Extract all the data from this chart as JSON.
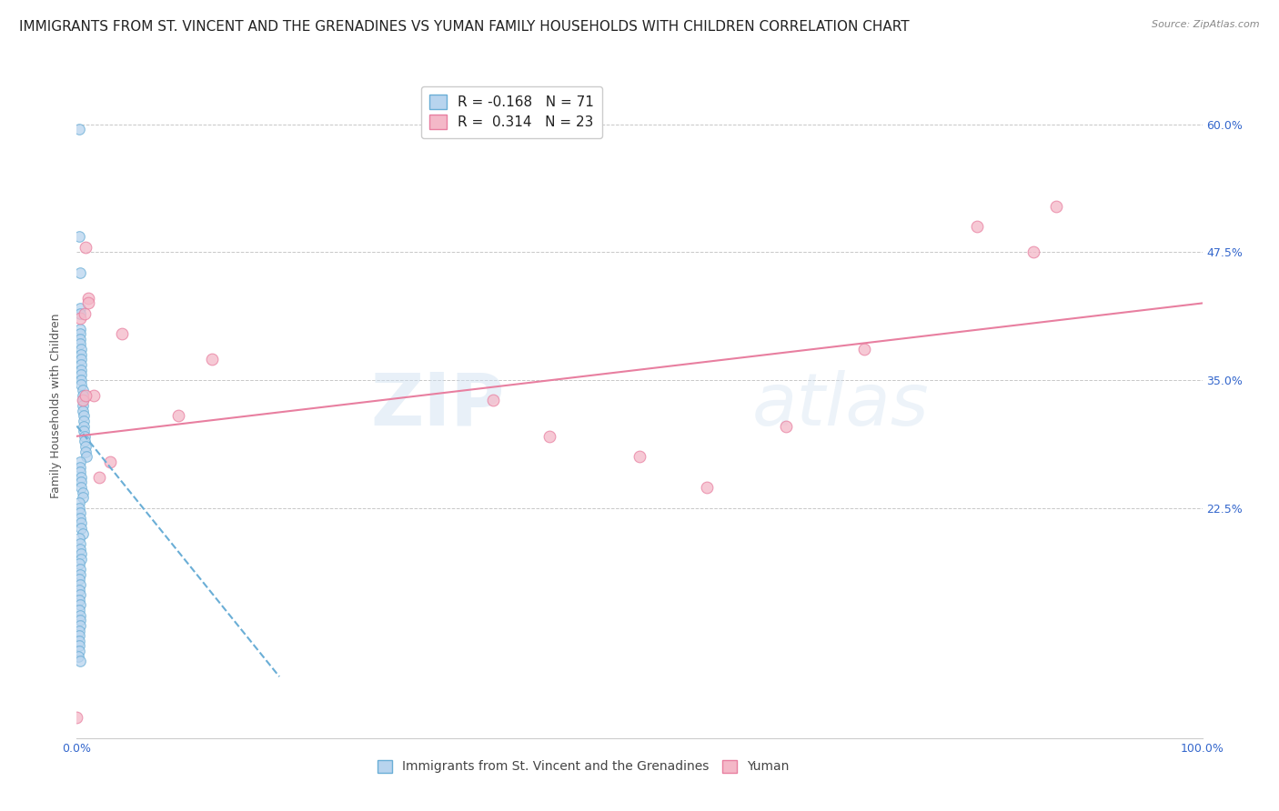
{
  "title": "IMMIGRANTS FROM ST. VINCENT AND THE GRENADINES VS YUMAN FAMILY HOUSEHOLDS WITH CHILDREN CORRELATION CHART",
  "source": "Source: ZipAtlas.com",
  "ylabel": "Family Households with Children",
  "watermark_zip": "ZIP",
  "watermark_atlas": "atlas",
  "legend_blue_r": "-0.168",
  "legend_blue_n": "71",
  "legend_pink_r": "0.314",
  "legend_pink_n": "23",
  "legend_blue_label": "Immigrants from St. Vincent and the Grenadines",
  "legend_pink_label": "Yuman",
  "xlim": [
    0.0,
    1.0
  ],
  "ylim": [
    0.0,
    0.65
  ],
  "xtick_positions": [
    0.0,
    0.125,
    0.25,
    0.375,
    0.5,
    0.625,
    0.75,
    0.875,
    1.0
  ],
  "xticklabels": [
    "0.0%",
    "",
    "",
    "",
    "",
    "",
    "",
    "",
    "100.0%"
  ],
  "ytick_positions": [
    0.225,
    0.35,
    0.475,
    0.6
  ],
  "yticklabels": [
    "22.5%",
    "35.0%",
    "47.5%",
    "60.0%"
  ],
  "blue_scatter_x": [
    0.002,
    0.002,
    0.003,
    0.003,
    0.003,
    0.003,
    0.003,
    0.003,
    0.003,
    0.004,
    0.004,
    0.004,
    0.004,
    0.004,
    0.004,
    0.004,
    0.004,
    0.005,
    0.005,
    0.005,
    0.005,
    0.005,
    0.006,
    0.006,
    0.006,
    0.006,
    0.007,
    0.007,
    0.008,
    0.008,
    0.009,
    0.003,
    0.003,
    0.003,
    0.004,
    0.004,
    0.004,
    0.005,
    0.005,
    0.002,
    0.002,
    0.003,
    0.003,
    0.004,
    0.004,
    0.005,
    0.002,
    0.003,
    0.003,
    0.004,
    0.004,
    0.002,
    0.003,
    0.003,
    0.002,
    0.003,
    0.002,
    0.003,
    0.002,
    0.003,
    0.002,
    0.003,
    0.003,
    0.003,
    0.002,
    0.002,
    0.002,
    0.002,
    0.002,
    0.001,
    0.003
  ],
  "blue_scatter_y": [
    0.595,
    0.49,
    0.455,
    0.42,
    0.415,
    0.4,
    0.395,
    0.39,
    0.385,
    0.38,
    0.375,
    0.37,
    0.365,
    0.36,
    0.355,
    0.35,
    0.345,
    0.34,
    0.335,
    0.33,
    0.325,
    0.32,
    0.315,
    0.31,
    0.305,
    0.3,
    0.295,
    0.29,
    0.285,
    0.28,
    0.275,
    0.27,
    0.265,
    0.26,
    0.255,
    0.25,
    0.245,
    0.24,
    0.235,
    0.23,
    0.225,
    0.22,
    0.215,
    0.21,
    0.205,
    0.2,
    0.195,
    0.19,
    0.185,
    0.18,
    0.175,
    0.17,
    0.165,
    0.16,
    0.155,
    0.15,
    0.145,
    0.14,
    0.135,
    0.13,
    0.125,
    0.12,
    0.115,
    0.11,
    0.105,
    0.1,
    0.095,
    0.09,
    0.085,
    0.08,
    0.075
  ],
  "pink_scatter_x": [
    0.003,
    0.007,
    0.008,
    0.01,
    0.01,
    0.015,
    0.02,
    0.04,
    0.12,
    0.37,
    0.5,
    0.56,
    0.63,
    0.7,
    0.8,
    0.85,
    0.87,
    0.005,
    0.008,
    0.03,
    0.09,
    0.42,
    0.0
  ],
  "pink_scatter_y": [
    0.41,
    0.415,
    0.48,
    0.43,
    0.425,
    0.335,
    0.255,
    0.395,
    0.37,
    0.33,
    0.275,
    0.245,
    0.305,
    0.38,
    0.5,
    0.475,
    0.52,
    0.33,
    0.335,
    0.27,
    0.315,
    0.295,
    0.02
  ],
  "blue_line_x": [
    0.0,
    0.18
  ],
  "blue_line_y": [
    0.305,
    0.06
  ],
  "pink_line_x": [
    0.0,
    1.0
  ],
  "pink_line_y": [
    0.295,
    0.425
  ],
  "background_color": "#ffffff",
  "blue_color": "#b8d4ee",
  "blue_edge_color": "#6aaed6",
  "pink_color": "#f4b8c8",
  "pink_edge_color": "#e87fa0",
  "grid_color": "#c8c8c8",
  "title_color": "#222222",
  "source_color": "#888888",
  "tick_color": "#3366cc",
  "ylabel_color": "#555555",
  "title_fontsize": 11,
  "source_fontsize": 8,
  "label_fontsize": 9,
  "tick_fontsize": 9,
  "legend_fontsize": 11,
  "marker_size": 70
}
